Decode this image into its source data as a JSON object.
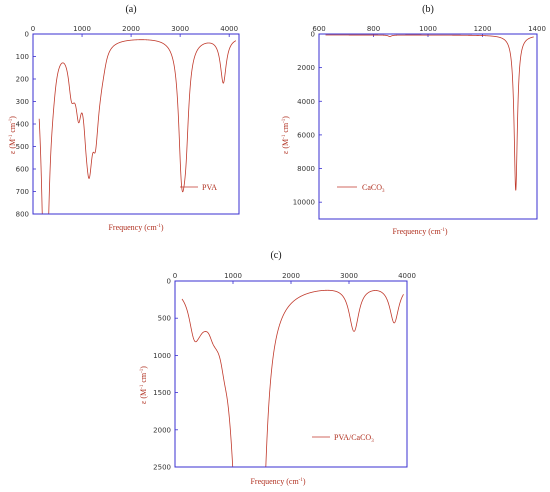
{
  "colors": {
    "frame": "#3a2fd0",
    "trace": "#c0392b",
    "text": "#b03020"
  },
  "chart_data": [
    {
      "type": "line",
      "panel_label": "(a)",
      "legend": "PVA",
      "xlabel_main": "Frequency (cm",
      "xlabel_sup": "-1",
      "xlabel_end": ")",
      "ylabel_main": "ε (M",
      "ylabel_sup1": "-1",
      "ylabel_mid": " cm",
      "ylabel_sup2": "-1",
      "ylabel_end": ")",
      "xlim": [
        0,
        4200
      ],
      "ylim": [
        0,
        800
      ],
      "y_inverted": true,
      "xticks": [
        0,
        1000,
        2000,
        3000,
        4000
      ],
      "yticks": [
        0,
        100,
        200,
        300,
        400,
        500,
        600,
        700,
        800
      ],
      "baseline": 10,
      "peaks": [
        {
          "x": 150,
          "y": 30
        },
        {
          "x": 220,
          "y": 250
        },
        {
          "x": 250,
          "y": 700
        },
        {
          "x": 270,
          "y": 300
        },
        {
          "x": 300,
          "y": 120
        },
        {
          "x": 380,
          "y": 70
        },
        {
          "x": 420,
          "y": 55
        },
        {
          "x": 780,
          "y": 160
        },
        {
          "x": 830,
          "y": 60
        },
        {
          "x": 930,
          "y": 240
        },
        {
          "x": 1080,
          "y": 200
        },
        {
          "x": 1140,
          "y": 315
        },
        {
          "x": 1180,
          "y": 130
        },
        {
          "x": 1270,
          "y": 290
        },
        {
          "x": 1320,
          "y": 80
        },
        {
          "x": 1380,
          "y": 70
        },
        {
          "x": 1440,
          "y": 50
        },
        {
          "x": 3020,
          "y": 355
        },
        {
          "x": 3060,
          "y": 250
        },
        {
          "x": 3120,
          "y": 320
        },
        {
          "x": 3880,
          "y": 210
        }
      ]
    },
    {
      "type": "line",
      "panel_label": "(b)",
      "legend_main": "CaCO",
      "legend_sub": "3",
      "xlabel_main": "Frequency (cm",
      "xlabel_sup": "-1",
      "xlabel_end": ")",
      "ylabel_main": "ε (M",
      "ylabel_sup1": "-1",
      "ylabel_mid": " cm",
      "ylabel_sup2": "-1",
      "ylabel_end": ")",
      "xlim": [
        600,
        1400
      ],
      "ylim": [
        0,
        11000
      ],
      "y_inverted": true,
      "xticks": [
        600,
        800,
        1000,
        1200,
        1400
      ],
      "yticks": [
        0,
        2000,
        4000,
        6000,
        8000,
        10000
      ],
      "baseline": 60,
      "peaks": [
        {
          "x": 860,
          "y": 150
        },
        {
          "x": 1322,
          "y": 9300
        }
      ]
    },
    {
      "type": "line",
      "panel_label": "(c)",
      "legend_main": "PVA/CaCO",
      "legend_sub": "3",
      "xlabel_main": "Frequency (cm",
      "xlabel_sup": "-1",
      "xlabel_end": ")",
      "ylabel_main": "ε (M",
      "ylabel_sup1": "-1",
      "ylabel_mid": " cm",
      "ylabel_sup2": "-1",
      "ylabel_end": ")",
      "xlim": [
        0,
        4000
      ],
      "ylim": [
        0,
        2500
      ],
      "y_inverted": true,
      "xticks": [
        0,
        1000,
        2000,
        3000,
        4000
      ],
      "yticks": [
        0,
        500,
        1000,
        1500,
        2000,
        2500
      ],
      "baseline": 20,
      "peaks": [
        {
          "x": 300,
          "y": 220
        },
        {
          "x": 350,
          "y": 350
        },
        {
          "x": 430,
          "y": 180
        },
        {
          "x": 520,
          "y": 130
        },
        {
          "x": 650,
          "y": 240
        },
        {
          "x": 720,
          "y": 150
        },
        {
          "x": 850,
          "y": 380
        },
        {
          "x": 960,
          "y": 250
        },
        {
          "x": 1050,
          "y": 850
        },
        {
          "x": 1100,
          "y": 550
        },
        {
          "x": 1140,
          "y": 1410
        },
        {
          "x": 1200,
          "y": 1000
        },
        {
          "x": 1260,
          "y": 1580
        },
        {
          "x": 1300,
          "y": 1200
        },
        {
          "x": 1340,
          "y": 2180
        },
        {
          "x": 1380,
          "y": 1500
        },
        {
          "x": 1420,
          "y": 2270
        },
        {
          "x": 1460,
          "y": 1100
        },
        {
          "x": 1530,
          "y": 280
        },
        {
          "x": 3060,
          "y": 240
        },
        {
          "x": 3100,
          "y": 430
        },
        {
          "x": 3780,
          "y": 530
        }
      ]
    }
  ]
}
